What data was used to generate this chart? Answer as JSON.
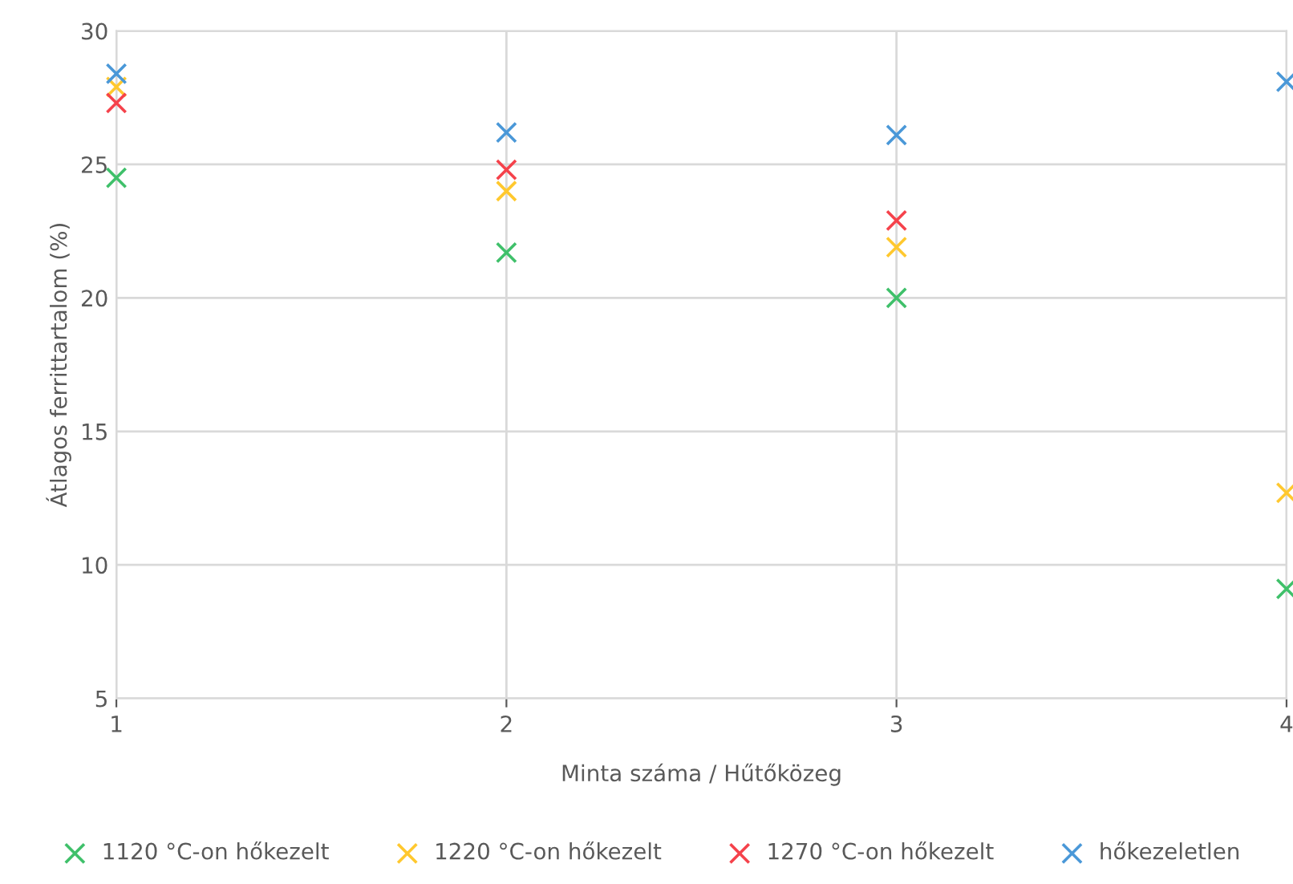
{
  "chart_data": {
    "type": "scatter",
    "xlabel": "Minta száma / Hűtőközeg",
    "ylabel": "Átlagos ferrittartalom (%)",
    "x": [
      1,
      2,
      3,
      4
    ],
    "xlim": [
      1,
      4
    ],
    "xticks": [
      1,
      2,
      3,
      4
    ],
    "ylim": [
      5,
      30
    ],
    "yticks": [
      5,
      10,
      15,
      20,
      25,
      30
    ],
    "grid": true,
    "legend": "bottom",
    "marker": "cross",
    "series": [
      {
        "name": "1120 °C-on hőkezelt",
        "color": "#3fc06a",
        "values": [
          24.5,
          21.7,
          20.0,
          9.1
        ]
      },
      {
        "name": "1220 °C-on hőkezelt",
        "color": "#ffc82e",
        "values": [
          27.9,
          24.0,
          21.9,
          12.7
        ]
      },
      {
        "name": "1270 °C-on hőkezelt",
        "color": "#f5424b",
        "values": [
          27.3,
          24.8,
          22.9,
          null
        ]
      },
      {
        "name": "hőkezeletlen",
        "color": "#4a98d8",
        "values": [
          28.4,
          26.2,
          26.1,
          28.1
        ]
      }
    ]
  }
}
